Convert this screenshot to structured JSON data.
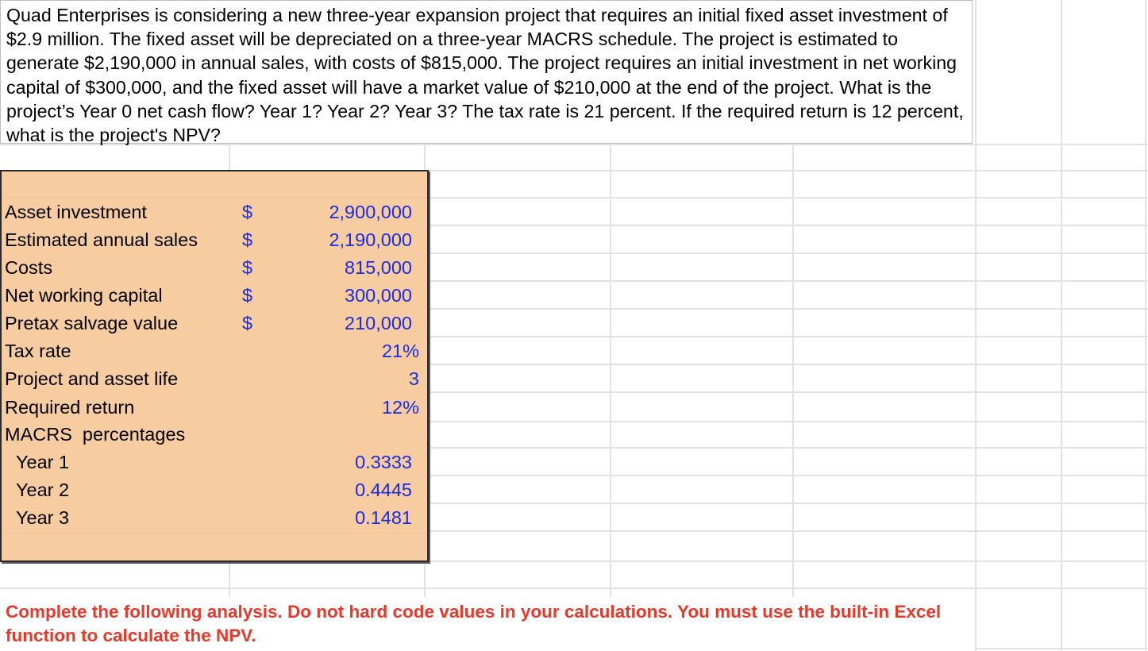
{
  "question": "Quad Enterprises is considering a new three-year expansion project that requires an initial fixed asset investment of $2.9 million. The fixed asset will be depreciated on a three-year MACRS schedule. The project is estimated to generate $2,190,000 in annual sales, with costs of $815,000. The project requires an initial investment in net working capital of $300,000, and the fixed asset will have a market value of $210,000 at the end of the project. What is the project’s Year 0 net cash flow? Year 1? Year 2? Year 3? The tax rate is 21 percent. If the required return is 12 percent, what is the project's NPV?",
  "inputs": {
    "asset_investment": {
      "label": "Asset investment",
      "currency": "$",
      "value": "2,900,000"
    },
    "annual_sales": {
      "label": "Estimated annual sales",
      "currency": "$",
      "value": "2,190,000"
    },
    "costs": {
      "label": "Costs",
      "currency": "$",
      "value": "815,000"
    },
    "nwc": {
      "label": "Net working capital",
      "currency": "$",
      "value": "300,000"
    },
    "salvage": {
      "label": "Pretax salvage value",
      "currency": "$",
      "value": "210,000"
    },
    "tax_rate": {
      "label": "Tax rate",
      "value": "21%"
    },
    "life": {
      "label": "Project and asset life",
      "value": "3"
    },
    "required_return": {
      "label": "Required return",
      "value": "12%"
    },
    "macrs_header": "MACRS  percentages",
    "macrs": [
      {
        "label": "Year 1",
        "value": "0.3333"
      },
      {
        "label": "Year 2",
        "value": "0.4445"
      },
      {
        "label": "Year 3",
        "value": "0.1481"
      }
    ]
  },
  "instructions": "Complete the following analysis. Do not hard code values in your calculations. You must use the built-in Excel function to calculate the NPV.",
  "colors": {
    "input_fill": "#f7cca1",
    "input_text": "#1a2be0",
    "instruction_text": "#e53a2a"
  }
}
